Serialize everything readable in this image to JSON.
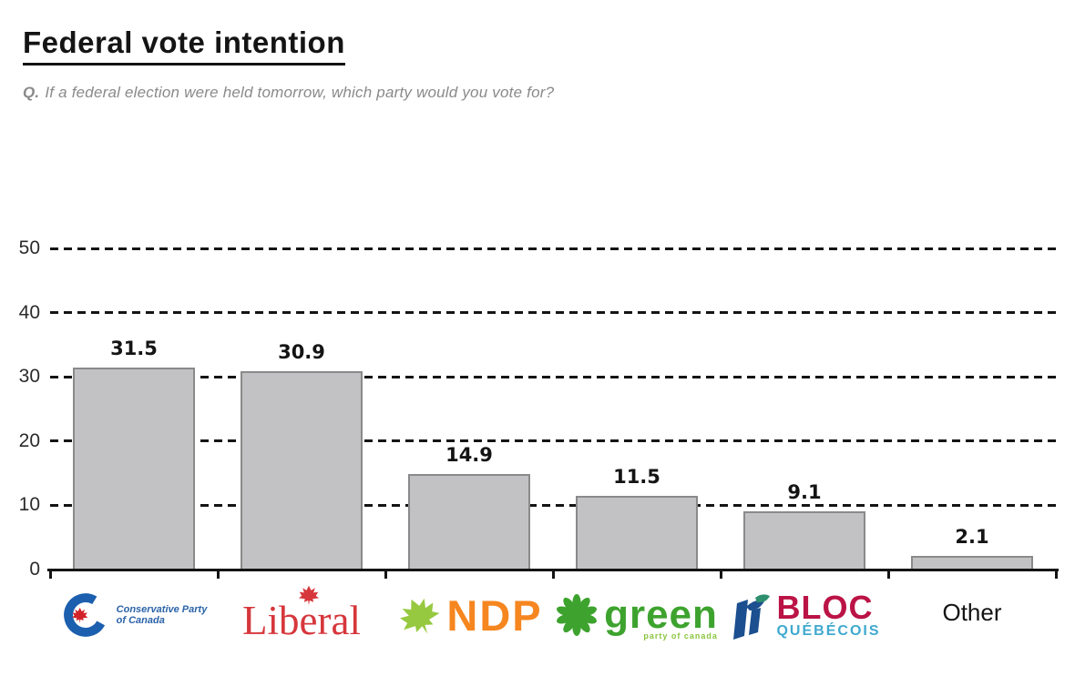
{
  "header": {
    "q_label": "Q.",
    "title": "Federal vote intention",
    "subtitle": "If a federal election were held tomorrow, which party would you vote for?"
  },
  "chart_data": {
    "type": "bar",
    "title": "Federal vote intention",
    "categories": [
      "Conservative Party of Canada",
      "Liberal",
      "NDP",
      "Green Party of Canada",
      "Bloc Québécois",
      "Other"
    ],
    "values": [
      31.5,
      30.9,
      14.9,
      11.5,
      9.1,
      2.1
    ],
    "bar_labels": [
      "31.5",
      "30.9",
      "14.9",
      "11.5",
      "9.1",
      "2.1"
    ],
    "xlabel": "",
    "ylabel": "",
    "ylim": [
      0,
      50
    ],
    "yticks": [
      0,
      10,
      20,
      30,
      40,
      50
    ],
    "grid": "horizontal-dashed",
    "legend": "none",
    "bar_color": "#c2c2c4",
    "bar_border_color": "#8a8a8a"
  },
  "x_axis_logos": {
    "conservative": {
      "name": "Conservative Party of Canada",
      "line1": "Conservative Party",
      "line2": "of Canada",
      "blue": "#1c5fae",
      "red": "#d2232a"
    },
    "liberal": {
      "text": "Liberal",
      "red": "#d6373c"
    },
    "ndp": {
      "text": "NDP",
      "orange": "#f6861f",
      "leaf_green": "#96c93f"
    },
    "green": {
      "text": "green",
      "subtext": "party of canada",
      "green": "#3da32e",
      "light_green": "#8bc53f"
    },
    "bloc": {
      "line1": "BLOC",
      "line2": "QUÉBÉCOIS",
      "crimson": "#bb1346",
      "light_blue": "#3fa9cf",
      "icon_blue": "#1b4f8f"
    },
    "other": {
      "text": "Other"
    }
  }
}
